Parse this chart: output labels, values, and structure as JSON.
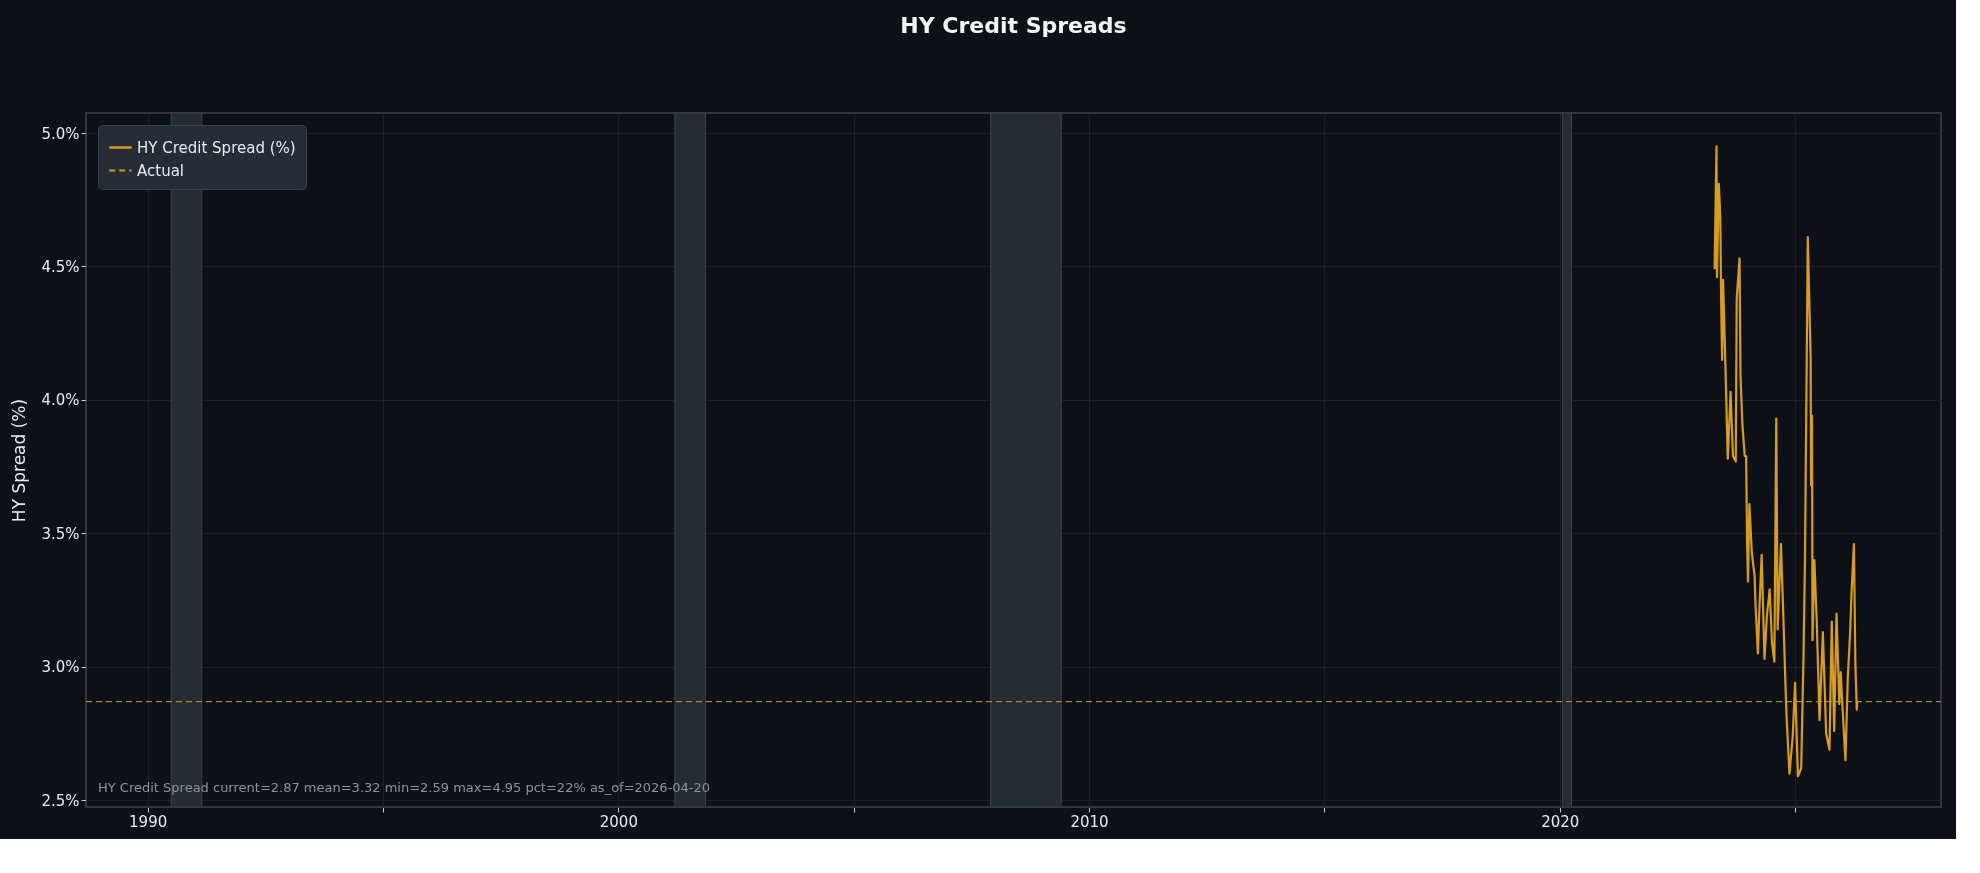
{
  "chart_data": {
    "type": "line",
    "title": "HY Credit Spreads",
    "ylabel": "HY Spread (%)",
    "x": [
      2023.29,
      2023.33,
      2023.34,
      2023.38,
      2023.41,
      2023.43,
      2023.45,
      2023.47,
      2023.52,
      2023.54,
      2023.57,
      2023.63,
      2023.68,
      2023.74,
      2023.75,
      2023.76,
      2023.82,
      2023.84,
      2023.88,
      2023.93,
      2023.96,
      2023.98,
      2024.0,
      2024.03,
      2024.08,
      2024.14,
      2024.16,
      2024.21,
      2024.24,
      2024.29,
      2024.35,
      2024.4,
      2024.46,
      2024.51,
      2024.56,
      2024.6,
      2024.63,
      2024.7,
      2024.75,
      2024.8,
      2024.82,
      2024.88,
      2024.95,
      2025.0,
      2025.06,
      2025.13,
      2025.18,
      2025.21,
      2025.27,
      2025.33,
      2025.34,
      2025.36,
      2025.37,
      2025.41,
      2025.46,
      2025.52,
      2025.59,
      2025.66,
      2025.73,
      2025.78,
      2025.83,
      2025.88,
      2025.94,
      2025.97,
      2026.01,
      2026.07,
      2026.12,
      2026.17,
      2026.2,
      2026.25,
      2026.28,
      2026.31,
      2026.32
    ],
    "series": [
      {
        "name": "HY Credit Spread (%)",
        "color": "#d79c22",
        "values": [
          4.49,
          4.95,
          4.46,
          4.81,
          4.69,
          4.36,
          4.15,
          4.45,
          4.13,
          3.99,
          3.78,
          4.03,
          3.79,
          3.77,
          4.09,
          4.38,
          4.53,
          4.09,
          3.91,
          3.79,
          3.79,
          3.47,
          3.32,
          3.61,
          3.43,
          3.34,
          3.23,
          3.05,
          3.21,
          3.42,
          3.03,
          3.19,
          3.29,
          3.09,
          3.02,
          3.93,
          3.14,
          3.46,
          3.19,
          2.91,
          2.81,
          2.6,
          2.74,
          2.94,
          2.59,
          2.62,
          3.05,
          3.4,
          4.61,
          4.16,
          3.68,
          3.94,
          3.1,
          3.4,
          3.17,
          2.8,
          3.13,
          2.75,
          2.69,
          3.17,
          2.76,
          3.2,
          2.86,
          2.98,
          2.84,
          2.65,
          2.96,
          3.13,
          3.28,
          3.46,
          3.02,
          2.84,
          2.87
        ]
      }
    ],
    "xlim": [
      1988.69,
      2028.1
    ],
    "xticks": [
      1990,
      {
        "value": 1995,
        "label": null
      },
      2000,
      {
        "value": 2005,
        "label": null
      },
      2010,
      {
        "value": 2015,
        "label": null
      },
      2020,
      {
        "value": 2025,
        "label": null
      }
    ],
    "ylim": [
      2.475,
      5.075
    ],
    "yticks": [
      {
        "value": 2.5,
        "label": "2.5%"
      },
      {
        "value": 3.0,
        "label": "3.0%"
      },
      {
        "value": 3.5,
        "label": "3.5%"
      },
      {
        "value": 4.0,
        "label": "4.0%"
      },
      {
        "value": 4.5,
        "label": "4.5%"
      },
      {
        "value": 5.0,
        "label": "5.0%"
      }
    ],
    "ref_lines": [
      {
        "axis": "y",
        "value": 2.87,
        "label": "Actual",
        "color": "#b5831f",
        "line_style": "dashed"
      }
    ],
    "bands": [
      {
        "axis": "x",
        "from": 1990.5,
        "to": 1991.15,
        "color": "#262a31"
      },
      {
        "axis": "x",
        "from": 2001.2,
        "to": 2001.85,
        "color": "#262a31"
      },
      {
        "axis": "x",
        "from": 2007.91,
        "to": 2009.41,
        "color": "#262a31"
      },
      {
        "axis": "x",
        "from": 2020.06,
        "to": 2020.25,
        "color": "#262a31"
      }
    ],
    "annotations": [
      "HY Credit Spread  current=2.87  mean=3.32  min=2.59  max=4.95  pct=22%  as_of=2026-04-20"
    ],
    "grid": true,
    "legend": "top left",
    "line_style": "solid",
    "marker": "none"
  }
}
